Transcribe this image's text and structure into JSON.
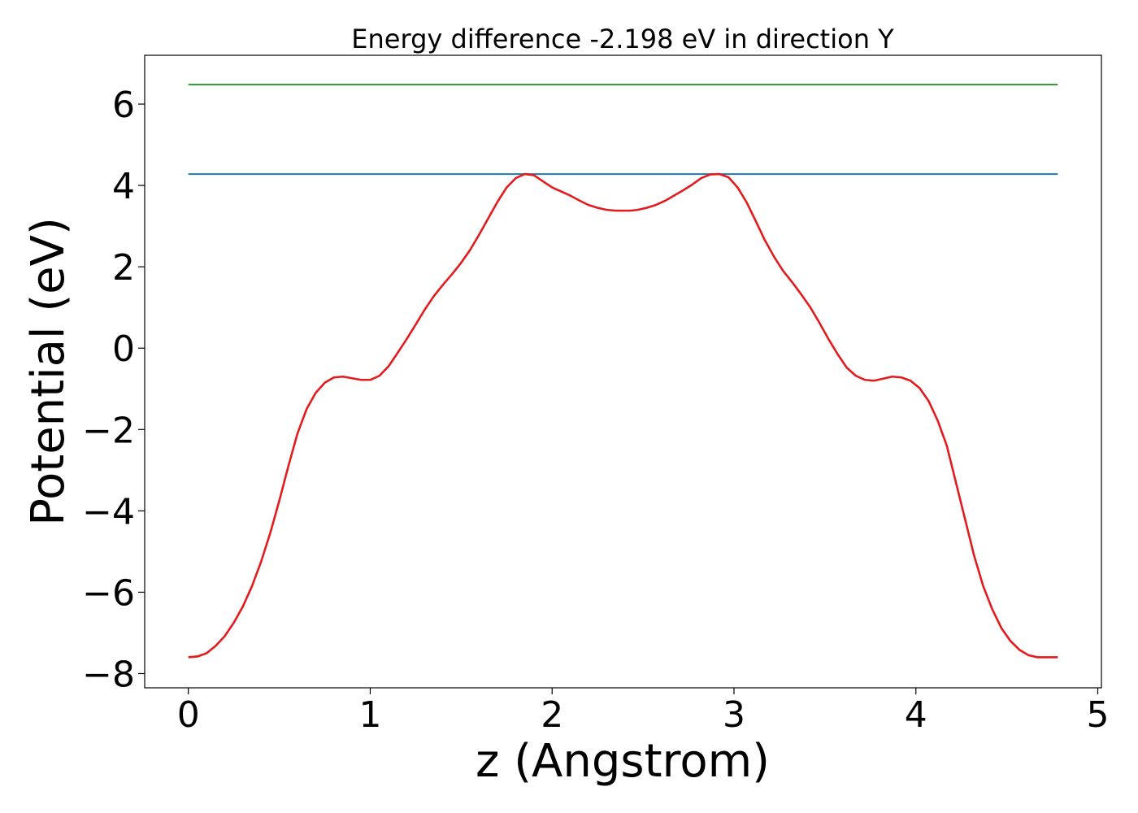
{
  "chart_data": {
    "type": "line",
    "title": "Energy difference -2.198 eV in direction Y",
    "xlabel": "z (Angstrom)",
    "ylabel": "Potential (eV)",
    "xlim": [
      -0.24,
      5.02
    ],
    "ylim": [
      -8.35,
      7.2
    ],
    "xticks": [
      0,
      1,
      2,
      3,
      4,
      5
    ],
    "yticks": [
      -8,
      -6,
      -4,
      -2,
      0,
      2,
      4,
      6
    ],
    "xtick_labels": [
      "0",
      "1",
      "2",
      "3",
      "4",
      "5"
    ],
    "ytick_labels": [
      "−8",
      "−6",
      "−4",
      "−2",
      "0",
      "2",
      "4",
      "6"
    ],
    "grid": false,
    "series": [
      {
        "color": "#2ca02c",
        "x": [
          0,
          4.78
        ],
        "y": [
          6.48,
          6.48
        ]
      },
      {
        "color": "#1f77b4",
        "x": [
          0,
          4.78
        ],
        "y": [
          4.28,
          4.28
        ]
      },
      {
        "color": "#e41a1c",
        "x": [
          0,
          0.05,
          0.1,
          0.15,
          0.2,
          0.25,
          0.3,
          0.35,
          0.4,
          0.45,
          0.5,
          0.55,
          0.6,
          0.65,
          0.7,
          0.75,
          0.8,
          0.85,
          0.9,
          0.95,
          1.0,
          1.05,
          1.1,
          1.15,
          1.2,
          1.25,
          1.3,
          1.35,
          1.4,
          1.45,
          1.5,
          1.55,
          1.6,
          1.65,
          1.7,
          1.75,
          1.8,
          1.85,
          1.9,
          1.95,
          2.0,
          2.05,
          2.1,
          2.15,
          2.2,
          2.25,
          2.3,
          2.35,
          2.39,
          2.43,
          2.47,
          2.52,
          2.57,
          2.62,
          2.67,
          2.72,
          2.77,
          2.82,
          2.87,
          2.92,
          2.97,
          3.02,
          3.07,
          3.12,
          3.17,
          3.22,
          3.27,
          3.32,
          3.37,
          3.42,
          3.47,
          3.52,
          3.57,
          3.62,
          3.67,
          3.72,
          3.77,
          3.82,
          3.87,
          3.92,
          3.97,
          4.02,
          4.07,
          4.12,
          4.17,
          4.22,
          4.27,
          4.32,
          4.37,
          4.42,
          4.47,
          4.52,
          4.57,
          4.62,
          4.67,
          4.72,
          4.78
        ],
        "y": [
          -7.6,
          -7.58,
          -7.5,
          -7.32,
          -7.08,
          -6.75,
          -6.35,
          -5.85,
          -5.25,
          -4.55,
          -3.75,
          -2.9,
          -2.1,
          -1.5,
          -1.1,
          -0.85,
          -0.72,
          -0.7,
          -0.74,
          -0.78,
          -0.78,
          -0.68,
          -0.45,
          -0.12,
          0.22,
          0.58,
          0.95,
          1.28,
          1.56,
          1.82,
          2.1,
          2.42,
          2.8,
          3.2,
          3.6,
          3.95,
          4.18,
          4.28,
          4.25,
          4.1,
          3.95,
          3.85,
          3.75,
          3.63,
          3.52,
          3.45,
          3.4,
          3.38,
          3.38,
          3.38,
          3.4,
          3.45,
          3.52,
          3.62,
          3.75,
          3.88,
          4.02,
          4.18,
          4.27,
          4.28,
          4.2,
          3.95,
          3.58,
          3.12,
          2.65,
          2.25,
          1.9,
          1.62,
          1.32,
          1.0,
          0.62,
          0.22,
          -0.15,
          -0.48,
          -0.68,
          -0.78,
          -0.8,
          -0.75,
          -0.7,
          -0.72,
          -0.8,
          -0.98,
          -1.3,
          -1.78,
          -2.4,
          -3.3,
          -4.2,
          -5.1,
          -5.85,
          -6.42,
          -6.88,
          -7.2,
          -7.42,
          -7.55,
          -7.6,
          -7.6,
          -7.6
        ]
      }
    ]
  }
}
